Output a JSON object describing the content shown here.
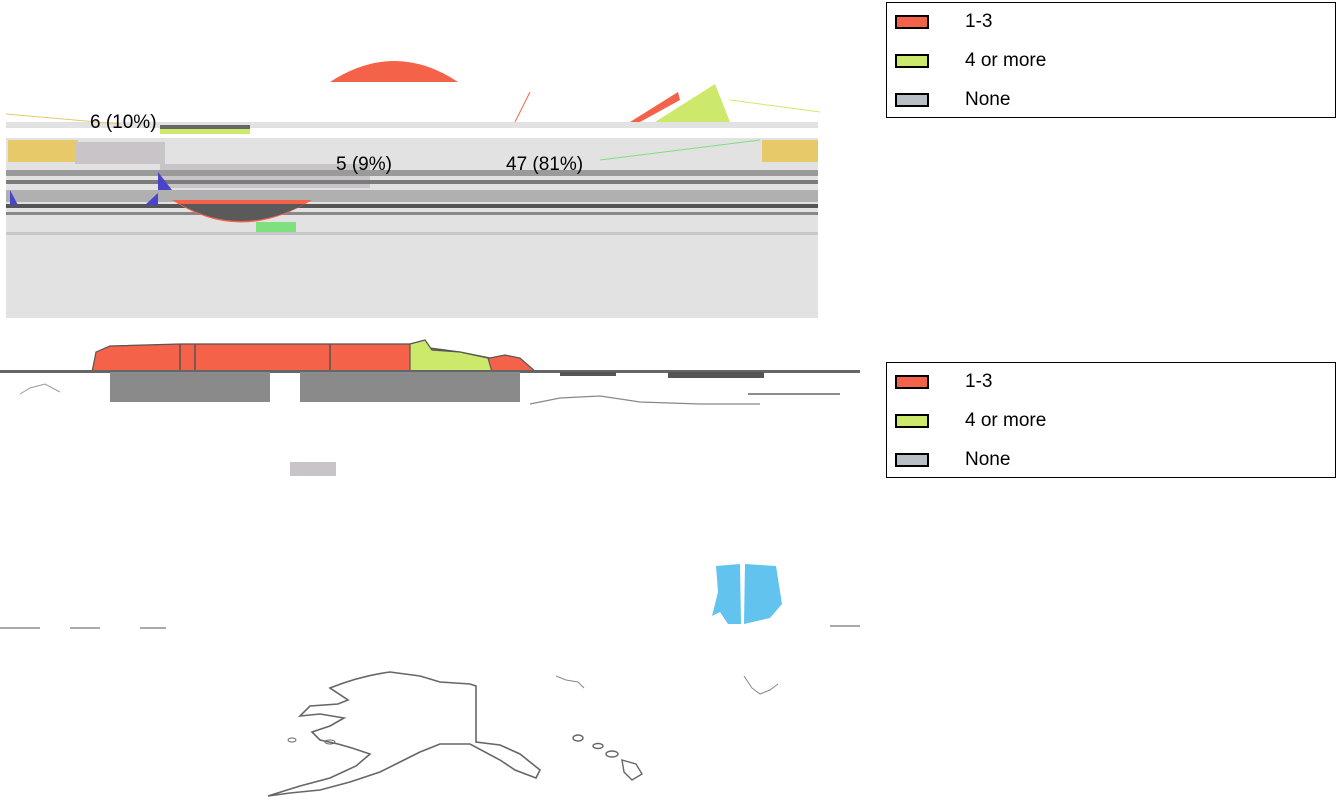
{
  "chart_data": [
    {
      "type": "pie",
      "categories": [
        "1-3",
        "4 or more",
        "None"
      ],
      "values": [
        6,
        5,
        47
      ],
      "data_labels": [
        "6 (10%)",
        "5 (9%)",
        "47 (81%)"
      ],
      "colors": [
        "#f4624a",
        "#cce96b",
        "#b8bfc7"
      ]
    },
    {
      "type": "map",
      "categories": [
        "1-3",
        "4 or more",
        "None"
      ],
      "colors": [
        "#f4624a",
        "#cce96b",
        "#b8bfc7"
      ]
    }
  ],
  "legends": [
    {
      "items": [
        {
          "label": "1-3",
          "color": "#f4624a"
        },
        {
          "label": "4 or more",
          "color": "#cce96b"
        },
        {
          "label": "None",
          "color": "#b8bfc7"
        }
      ]
    },
    {
      "items": [
        {
          "label": "1-3",
          "color": "#f4624a"
        },
        {
          "label": "4 or more",
          "color": "#cce96b"
        },
        {
          "label": "None",
          "color": "#b8bfc7"
        }
      ]
    }
  ]
}
